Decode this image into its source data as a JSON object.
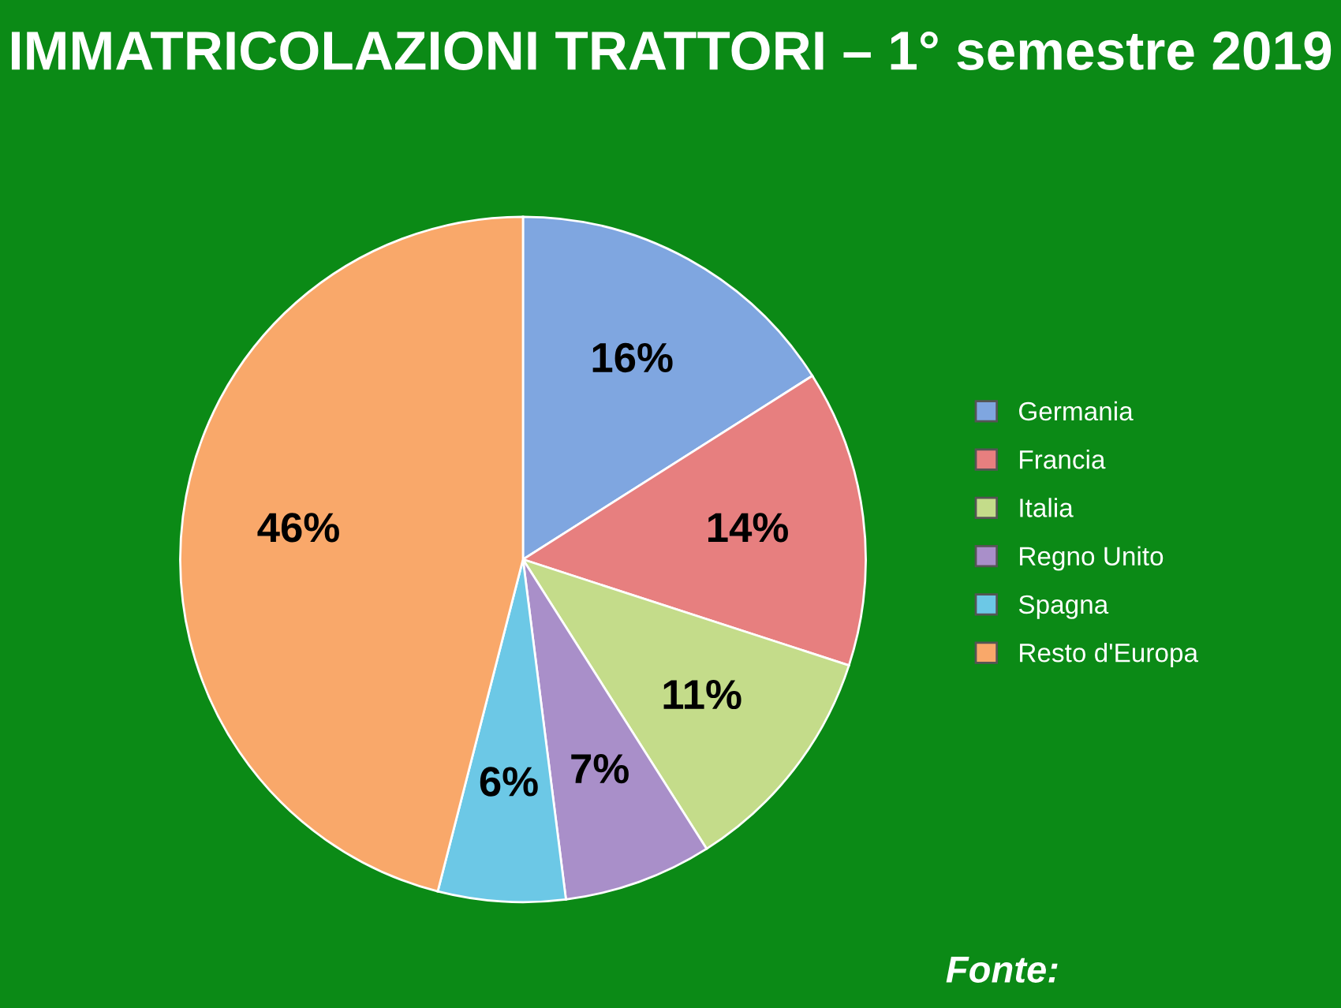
{
  "chart_data": {
    "type": "pie",
    "title": "IMMATRICOLAZIONI TRATTORI – 1° semestre 2019",
    "categories": [
      "Germania",
      "Francia",
      "Italia",
      "Regno Unito",
      "Spagna",
      "Resto d'Europa"
    ],
    "values": [
      16,
      14,
      11,
      7,
      6,
      46
    ],
    "colors": [
      "#7fa6e0",
      "#e77f7f",
      "#c4dc8a",
      "#a98fc9",
      "#6cc8e6",
      "#f9a86a"
    ],
    "value_labels": [
      "16%",
      "14%",
      "11%",
      "7%",
      "6%",
      "46%"
    ],
    "legend": "right",
    "annotations": [
      "Fonte:"
    ]
  }
}
